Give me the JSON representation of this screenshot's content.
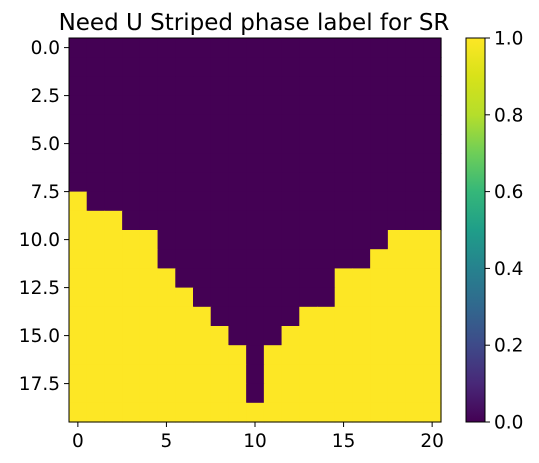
{
  "chart_data": {
    "type": "heatmap",
    "title": "Need U Striped phase label for SR",
    "xlabel": "",
    "ylabel": "",
    "rows": 20,
    "cols": 21,
    "xlim": [
      -0.5,
      20.5
    ],
    "ylim": [
      19.5,
      -0.5
    ],
    "x_ticks": [
      0,
      5,
      10,
      15,
      20
    ],
    "x_tick_labels": [
      "0",
      "5",
      "10",
      "15",
      "20"
    ],
    "y_ticks": [
      0.0,
      2.5,
      5.0,
      7.5,
      10.0,
      12.5,
      15.0,
      17.5
    ],
    "y_tick_labels": [
      "0.0",
      "2.5",
      "5.0",
      "7.5",
      "10.0",
      "12.5",
      "15.0",
      "17.5"
    ],
    "colormap": "viridis",
    "vmin": 0.0,
    "vmax": 1.0,
    "colorbar_ticks": [
      0.0,
      0.2,
      0.4,
      0.6,
      0.8,
      1.0
    ],
    "colorbar_tick_labels": [
      "0.0",
      "0.2",
      "0.4",
      "0.6",
      "0.8",
      "1.0"
    ],
    "boundary_note": "value is 1 where row index >= first_row_with_1 for that column",
    "first_row_with_1_per_column": [
      8,
      9,
      9,
      10,
      10,
      12,
      13,
      14,
      15,
      16,
      19,
      16,
      15,
      14,
      14,
      12,
      12,
      11,
      10,
      10,
      10
    ],
    "colors": {
      "low": "#440154",
      "high": "#fde725"
    }
  }
}
